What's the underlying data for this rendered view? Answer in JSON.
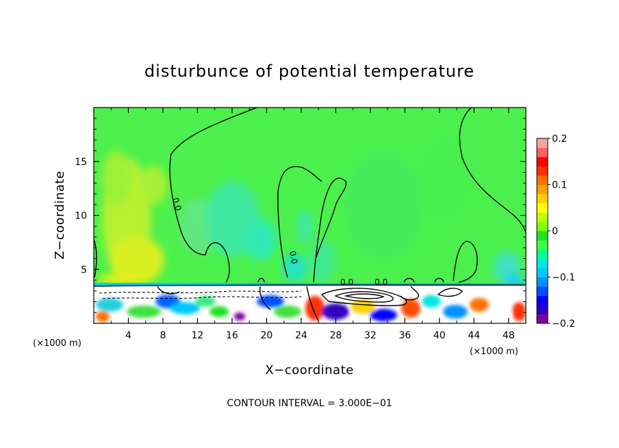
{
  "chart_data": {
    "type": "heatmap",
    "title": "disturbunce of potential temperature",
    "xlabel": "X−coordinate",
    "ylabel": "Z−coordinate",
    "x_unit_left": "(×1000 m)",
    "x_unit_right": "(×1000 m)",
    "xlim": [
      0,
      50
    ],
    "ylim": [
      0,
      20
    ],
    "x_ticks": [
      4,
      8,
      12,
      16,
      20,
      24,
      28,
      32,
      36,
      40,
      44,
      48
    ],
    "x_tick_labels": [
      "4",
      "8",
      "12",
      "16",
      "20",
      "24",
      "28",
      "32",
      "36",
      "40",
      "44",
      "48"
    ],
    "y_ticks": [
      5,
      10,
      15
    ],
    "y_tick_labels": [
      "5",
      "10",
      "15"
    ],
    "colorbar": {
      "range": [
        -0.2,
        0.2
      ],
      "ticks": [
        0.2,
        0.1,
        0,
        -0.1,
        -0.2
      ],
      "tick_labels": [
        "0.2",
        "0.1",
        "0",
        "−0.1",
        "−0.2"
      ],
      "colors": [
        "#8000a0",
        "#3000c0",
        "#0000ff",
        "#0050ff",
        "#0090ff",
        "#00c8ff",
        "#00e8e0",
        "#00ff90",
        "#40ff40",
        "#20e020",
        "#80ff00",
        "#c0ff00",
        "#ffff00",
        "#ffd000",
        "#ffa000",
        "#ff7000",
        "#ff3000",
        "#ff0000",
        "#ff6060",
        "#ffa0a0"
      ]
    },
    "contour_labels": [
      "0.0",
      "0.0",
      "0.0",
      "0.0"
    ],
    "footer": "CONTOUR INTERVAL = 3.000E−01",
    "grid": false
  }
}
